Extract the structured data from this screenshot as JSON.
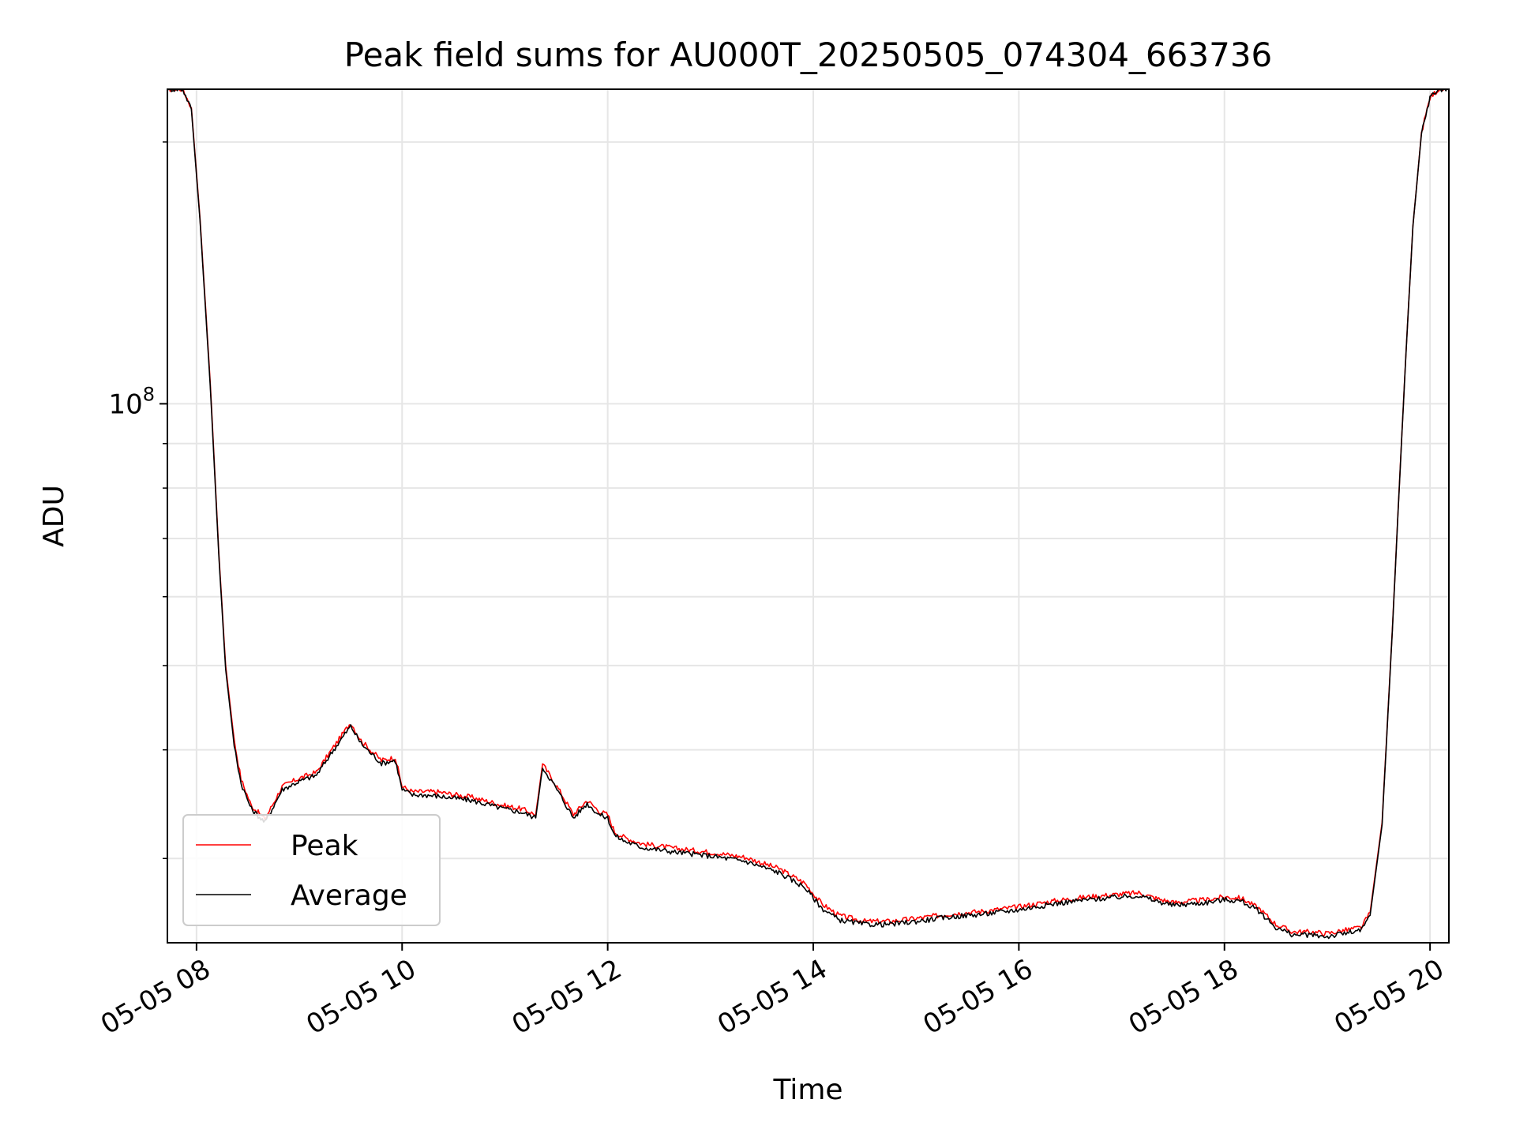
{
  "chart_data": {
    "type": "line",
    "title": "Peak field sums for AU000T_20250505_074304_663736",
    "xlabel": "Time",
    "ylabel": "ADU",
    "y_scale": "log",
    "grid": true,
    "legend_position": "lower-left",
    "x_range": [
      "05-05 07:43",
      "05-05 20:11"
    ],
    "ylim": [
      24000000,
      230000000
    ],
    "x_ticks": [
      "05-05 08",
      "05-05 10",
      "05-05 12",
      "05-05 14",
      "05-05 16",
      "05-05 18",
      "05-05 20"
    ],
    "y_tick_major": {
      "value": 100000000,
      "label_base": "10",
      "label_exp": "8"
    },
    "y_minor_ticks": [
      30000000,
      40000000,
      50000000,
      60000000,
      70000000,
      80000000,
      90000000,
      200000000
    ],
    "colors": {
      "peak": "#ff0000",
      "average": "#000000",
      "grid": "#e6e6e6"
    },
    "x": [
      "07:43",
      "07:52",
      "07:57",
      "08:02",
      "08:08",
      "08:13",
      "08:17",
      "08:22",
      "08:26",
      "08:32",
      "08:40",
      "08:50",
      "09:00",
      "09:10",
      "09:20",
      "09:30",
      "09:36",
      "09:42",
      "09:48",
      "09:56",
      "10:00",
      "10:06",
      "10:12",
      "10:20",
      "10:40",
      "11:00",
      "11:10",
      "11:18",
      "11:22",
      "11:27",
      "11:33",
      "11:40",
      "11:48",
      "11:55",
      "12:00",
      "12:04",
      "12:10",
      "12:20",
      "12:40",
      "13:00",
      "13:20",
      "13:40",
      "13:55",
      "14:05",
      "14:15",
      "14:30",
      "14:45",
      "15:00",
      "15:20",
      "15:40",
      "16:00",
      "16:20",
      "16:40",
      "17:00",
      "17:10",
      "17:20",
      "17:30",
      "17:50",
      "18:00",
      "18:10",
      "18:20",
      "18:30",
      "18:40",
      "18:50",
      "19:00",
      "19:10",
      "19:20",
      "19:25",
      "19:32",
      "19:38",
      "19:42",
      "19:46",
      "19:50",
      "19:55",
      "20:00",
      "20:05",
      "20:11"
    ],
    "series": [
      {
        "name": "Peak",
        "values": [
          230000000,
          230000000,
          219000000,
          164000000,
          106000000,
          67500000,
          50000000,
          41000000,
          37000000,
          34500000,
          33300000,
          36300000,
          37100000,
          37700000,
          40300000,
          43000000,
          41000000,
          39900000,
          38900000,
          39200000,
          36300000,
          35800000,
          35800000,
          35800000,
          35300000,
          34500000,
          34200000,
          33700000,
          38500000,
          37200000,
          35600000,
          33700000,
          35000000,
          34000000,
          33700000,
          32200000,
          31700000,
          31200000,
          30800000,
          30500000,
          30100000,
          29200000,
          28100000,
          26600000,
          25800000,
          25400000,
          25400000,
          25600000,
          25900000,
          26100000,
          26400000,
          26800000,
          27100000,
          27300000,
          27400000,
          27000000,
          26700000,
          26900000,
          27100000,
          27000000,
          26300000,
          25200000,
          24700000,
          24700000,
          24600000,
          24800000,
          25000000,
          26000000,
          33000000,
          55000000,
          80000000,
          115000000,
          160000000,
          205000000,
          225000000,
          230000000,
          230000000
        ]
      },
      {
        "name": "Average",
        "values": [
          230000000,
          230000000,
          218000000,
          163000000,
          105000000,
          67000000,
          49500000,
          40500000,
          36600000,
          34200000,
          33000000,
          36000000,
          36800000,
          37400000,
          40000000,
          42600000,
          40700000,
          39600000,
          38600000,
          38900000,
          36000000,
          35500000,
          35500000,
          35400000,
          35000000,
          34200000,
          33900000,
          33400000,
          38200000,
          36900000,
          35300000,
          33400000,
          34700000,
          33700000,
          33400000,
          31900000,
          31400000,
          30900000,
          30500000,
          30200000,
          29800000,
          28900000,
          27800000,
          26300000,
          25500000,
          25200000,
          25200000,
          25400000,
          25700000,
          25900000,
          26200000,
          26600000,
          26900000,
          27100000,
          27200000,
          26800000,
          26500000,
          26700000,
          26900000,
          26800000,
          26100000,
          25000000,
          24500000,
          24500000,
          24400000,
          24600000,
          24800000,
          25800000,
          32800000,
          54800000,
          79800000,
          114800000,
          159800000,
          204800000,
          225000000,
          230000000,
          230000000
        ]
      }
    ]
  }
}
